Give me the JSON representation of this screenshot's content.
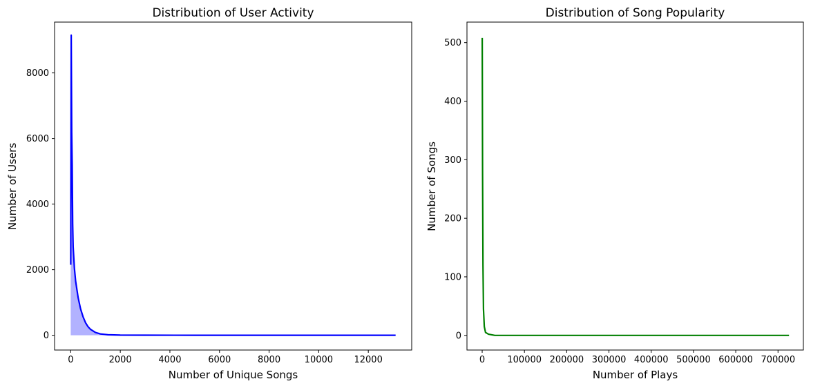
{
  "chart_data": [
    {
      "type": "area",
      "title": "Distribution of User Activity",
      "xlabel": "Number of Unique Songs",
      "ylabel": "Number of Users",
      "xlim": [
        -650,
        13750
      ],
      "ylim": [
        -450,
        9550
      ],
      "xticks": [
        0,
        2000,
        4000,
        6000,
        8000,
        10000,
        12000
      ],
      "xtick_labels": [
        "0",
        "2000",
        "4000",
        "6000",
        "8000",
        "10000",
        "12000"
      ],
      "yticks": [
        0,
        2000,
        4000,
        6000,
        8000
      ],
      "ytick_labels": [
        "0",
        "2000",
        "4000",
        "6000",
        "8000"
      ],
      "grid": false,
      "series": [
        {
          "color": "#0000ff",
          "fill_color": "#0000ff",
          "x": [
            1,
            20,
            40,
            60,
            80,
            100,
            150,
            200,
            300,
            400,
            500,
            600,
            700,
            800,
            1000,
            1200,
            1500,
            2000,
            3000,
            5000,
            8000,
            11000,
            13100
          ],
          "y": [
            2150,
            9150,
            6200,
            5200,
            3400,
            2700,
            2050,
            1650,
            1150,
            800,
            560,
            380,
            260,
            180,
            85,
            40,
            15,
            5,
            2,
            0,
            0,
            0,
            0
          ]
        }
      ]
    },
    {
      "type": "line",
      "title": "Distribution of Song Popularity",
      "xlabel": "Number of Plays",
      "ylabel": "Number of Songs",
      "xlim": [
        -36000,
        760000
      ],
      "ylim": [
        -25,
        535
      ],
      "xticks": [
        0,
        100000,
        200000,
        300000,
        400000,
        500000,
        600000,
        700000
      ],
      "xtick_labels": [
        "0",
        "100000",
        "200000",
        "300000",
        "400000",
        "500000",
        "600000",
        "700000"
      ],
      "yticks": [
        0,
        100,
        200,
        300,
        400,
        500
      ],
      "ytick_labels": [
        "0",
        "100",
        "200",
        "300",
        "400",
        "500"
      ],
      "grid": false,
      "series": [
        {
          "color": "#008000",
          "x": [
            100,
            1000,
            2000,
            3000,
            5000,
            8000,
            15000,
            30000,
            100000,
            300000,
            500000,
            726000
          ],
          "y": [
            508,
            280,
            120,
            45,
            15,
            5,
            2,
            0,
            0,
            0,
            0,
            0
          ]
        }
      ]
    }
  ]
}
